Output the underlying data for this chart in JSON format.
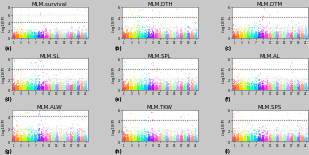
{
  "titles": [
    "MLM.survival",
    "MLM.DTH",
    "MLM.DTM",
    "MLM.SL",
    "MLM.SPL",
    "MLM.AL",
    "MLM.ALW",
    "MLM.TKW",
    "MLM.SPS"
  ],
  "panel_labels": [
    "(a)",
    "(b)",
    "(c)",
    "(d)",
    "(e)",
    "(f)",
    "(g)",
    "(h)",
    "(i)"
  ],
  "n_chromosomes": 21,
  "chr_colors": [
    "#e6194b",
    "#f58231",
    "#ffe119",
    "#bfef45",
    "#3cb44b",
    "#42d4f4",
    "#4363d8",
    "#911eb4",
    "#f032e6",
    "#fabebe",
    "#ffd8b1",
    "#aaffc3",
    "#469990",
    "#e6beff",
    "#9a6324",
    "#800000",
    "#808000",
    "#000075",
    "#a9a9a9",
    "#ffffff",
    "#000000"
  ],
  "chr_colors2": [
    "#FF4444",
    "#FF8800",
    "#FFCC00",
    "#CCFF00",
    "#44FF44",
    "#00FFCC",
    "#00CCFF",
    "#4444FF",
    "#CC00FF",
    "#FF44CC",
    "#FF9999",
    "#99FF99",
    "#9999FF",
    "#FFCC99",
    "#99FFCC",
    "#CC99FF",
    "#FF6699",
    "#66FF99",
    "#9966FF",
    "#FF9966",
    "#66CCFF"
  ],
  "ylabel": "-log10(P)",
  "threshold": 4.0,
  "outer_bg": "#c8c8c8",
  "panel_bg": "#ffffff",
  "title_fontsize": 4.0,
  "label_fontsize": 3.0,
  "tick_fontsize": 2.5,
  "seed": 12345,
  "n_snps_per_chr": 120,
  "ylim_maxes": [
    8,
    6,
    6,
    6,
    6,
    6,
    5,
    6,
    6
  ],
  "y_major_ticks": [
    [
      0,
      2,
      4,
      6,
      8
    ],
    [
      0,
      2,
      4,
      6
    ],
    [
      0,
      2,
      4,
      6
    ],
    [
      0,
      2,
      4,
      6
    ],
    [
      0,
      2,
      4,
      6
    ],
    [
      0,
      2,
      4,
      6
    ],
    [
      0,
      2,
      4
    ],
    [
      0,
      2,
      4,
      6
    ],
    [
      0,
      2,
      4,
      6
    ]
  ]
}
